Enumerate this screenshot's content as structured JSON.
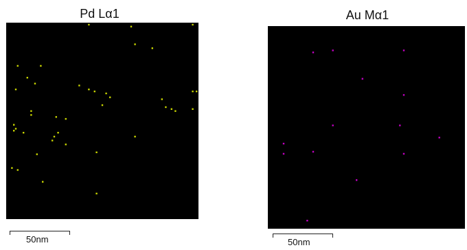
{
  "panels": [
    {
      "title": "Pd Lα1",
      "element": "Pd",
      "dot_color": "#c8d400",
      "scale_label": "50nm",
      "dots": [
        [
          0.43,
          0.01
        ],
        [
          0.65,
          0.02
        ],
        [
          0.97,
          0.01
        ],
        [
          0.67,
          0.11
        ],
        [
          0.76,
          0.13
        ],
        [
          0.06,
          0.22
        ],
        [
          0.18,
          0.22
        ],
        [
          0.11,
          0.28
        ],
        [
          0.15,
          0.31
        ],
        [
          0.38,
          0.32
        ],
        [
          0.05,
          0.34
        ],
        [
          0.97,
          0.35
        ],
        [
          0.99,
          0.35
        ],
        [
          0.43,
          0.34
        ],
        [
          0.46,
          0.35
        ],
        [
          0.52,
          0.36
        ],
        [
          0.54,
          0.38
        ],
        [
          0.5,
          0.42
        ],
        [
          0.81,
          0.39
        ],
        [
          0.83,
          0.43
        ],
        [
          0.86,
          0.44
        ],
        [
          0.88,
          0.45
        ],
        [
          0.97,
          0.44
        ],
        [
          0.13,
          0.45
        ],
        [
          0.13,
          0.47
        ],
        [
          0.26,
          0.48
        ],
        [
          0.31,
          0.49
        ],
        [
          0.04,
          0.52
        ],
        [
          0.05,
          0.54
        ],
        [
          0.04,
          0.55
        ],
        [
          0.09,
          0.56
        ],
        [
          0.27,
          0.56
        ],
        [
          0.25,
          0.58
        ],
        [
          0.24,
          0.6
        ],
        [
          0.67,
          0.58
        ],
        [
          0.31,
          0.62
        ],
        [
          0.47,
          0.66
        ],
        [
          0.16,
          0.67
        ],
        [
          0.03,
          0.74
        ],
        [
          0.06,
          0.75
        ],
        [
          0.19,
          0.81
        ],
        [
          0.47,
          0.87
        ]
      ]
    },
    {
      "title": "Au Mα1",
      "element": "Au",
      "dot_color": "#c000c0",
      "scale_label": "50nm",
      "dots": [
        [
          0.23,
          0.13
        ],
        [
          0.33,
          0.12
        ],
        [
          0.69,
          0.12
        ],
        [
          0.48,
          0.26
        ],
        [
          0.69,
          0.34
        ],
        [
          0.33,
          0.49
        ],
        [
          0.67,
          0.49
        ],
        [
          0.87,
          0.55
        ],
        [
          0.08,
          0.58
        ],
        [
          0.23,
          0.62
        ],
        [
          0.08,
          0.63
        ],
        [
          0.69,
          0.63
        ],
        [
          0.45,
          0.76
        ],
        [
          0.2,
          0.96
        ]
      ]
    }
  ]
}
